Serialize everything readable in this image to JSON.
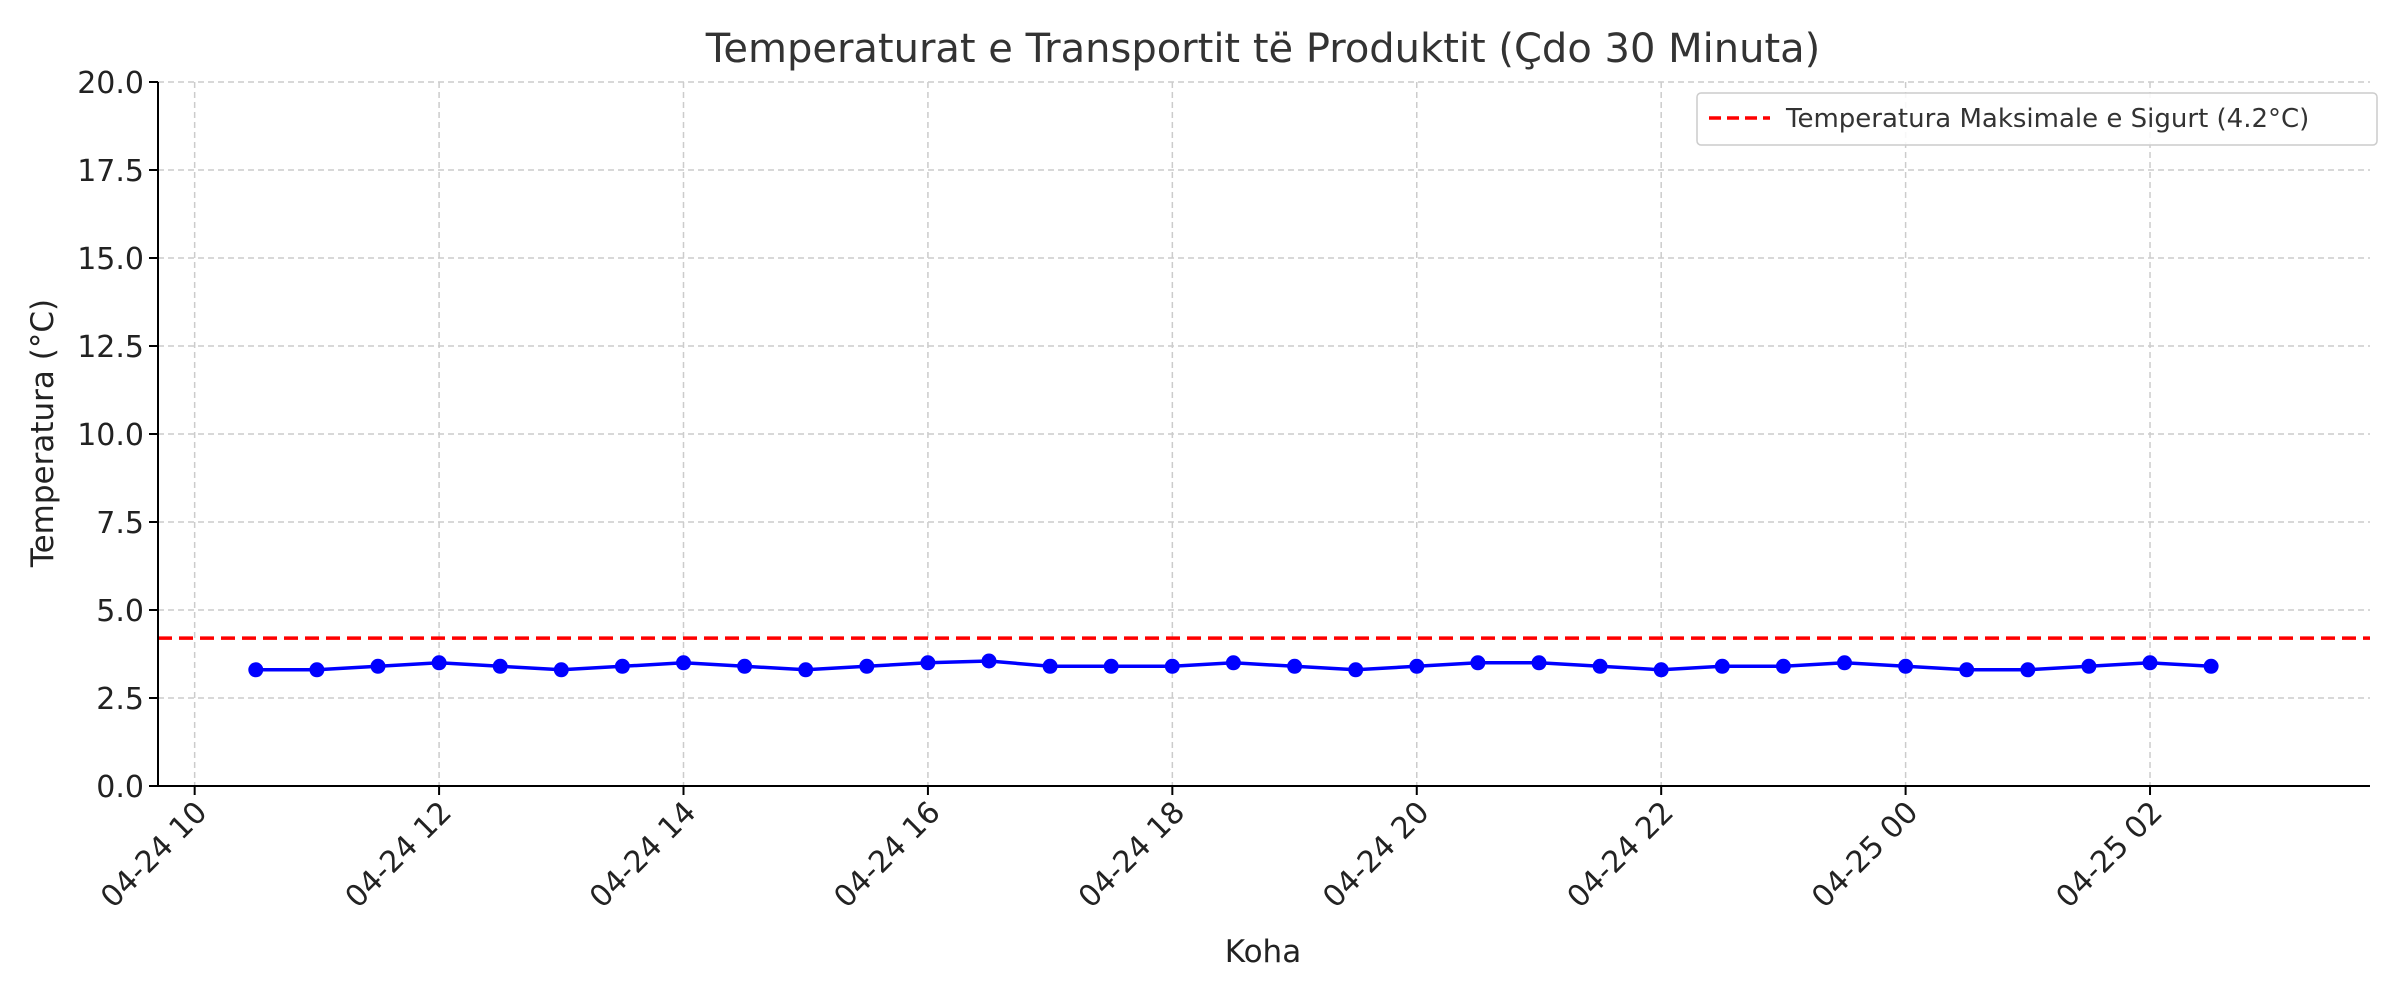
{
  "chart_data": {
    "type": "line",
    "title": "Temperaturat e Transportit të Produktit (Çdo 30 Minuta)",
    "xlabel": "Koha",
    "ylabel": "Temperatura (°C)",
    "x_tick_labels": [
      "04-24 10",
      "04-24 12",
      "04-24 14",
      "04-24 16",
      "04-24 18",
      "04-24 20",
      "04-24 22",
      "04-25 00",
      "04-25 02"
    ],
    "y_tick_labels": [
      "0.0",
      "2.5",
      "5.0",
      "7.5",
      "10.0",
      "12.5",
      "15.0",
      "17.5",
      "20.0"
    ],
    "ylim": [
      0,
      20
    ],
    "xlim": [
      "2024-04-24 09:42",
      "2024-04-25 03:48"
    ],
    "grid": true,
    "legend_position": "top-right",
    "series": [
      {
        "name": "",
        "color": "#0000ff",
        "marker": "circle",
        "x": [
          "2024-04-24 10:30",
          "2024-04-24 11:00",
          "2024-04-24 11:30",
          "2024-04-24 12:00",
          "2024-04-24 12:30",
          "2024-04-24 13:00",
          "2024-04-24 13:30",
          "2024-04-24 14:00",
          "2024-04-24 14:30",
          "2024-04-24 15:00",
          "2024-04-24 15:30",
          "2024-04-24 16:00",
          "2024-04-24 16:30",
          "2024-04-24 17:00",
          "2024-04-24 17:30",
          "2024-04-24 18:00",
          "2024-04-24 18:30",
          "2024-04-24 19:00",
          "2024-04-24 19:30",
          "2024-04-24 20:00",
          "2024-04-24 20:30",
          "2024-04-24 21:00",
          "2024-04-24 21:30",
          "2024-04-24 22:00",
          "2024-04-24 22:30",
          "2024-04-24 23:00",
          "2024-04-24 23:30",
          "2024-04-25 00:00",
          "2024-04-25 00:30",
          "2024-04-25 01:00",
          "2024-04-25 01:30",
          "2024-04-25 02:00",
          "2024-04-25 02:30"
        ],
        "values": [
          3.3,
          3.3,
          3.4,
          3.5,
          3.4,
          3.3,
          3.4,
          3.5,
          3.4,
          3.3,
          3.4,
          3.5,
          3.55,
          3.4,
          3.4,
          3.4,
          3.5,
          3.4,
          3.3,
          3.4,
          3.5,
          3.5,
          3.4,
          3.3,
          3.4,
          3.4,
          3.5,
          3.4,
          3.3,
          3.3,
          3.4,
          3.5,
          3.4
        ]
      }
    ],
    "reference_line": {
      "name": "Temperatura Maksimale e Sigurt (4.2°C)",
      "value": 4.2,
      "color": "#ff0000",
      "style": "dashed"
    }
  }
}
